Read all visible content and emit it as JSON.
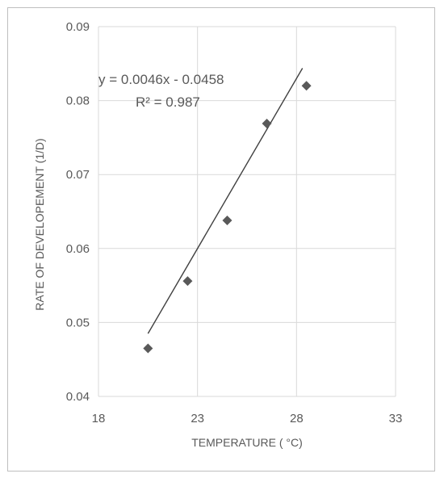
{
  "chart_data": {
    "type": "scatter",
    "xlabel": "TEMPERATURE ( °C)",
    "ylabel": "RATE OF DEVELOPEMENT (1/D)",
    "xlim": [
      18,
      33
    ],
    "ylim": [
      0.04,
      0.09
    ],
    "x_ticks": [
      "18",
      "23",
      "28",
      "33"
    ],
    "y_ticks": [
      "0.04",
      "0.05",
      "0.06",
      "0.07",
      "0.08",
      "0.09"
    ],
    "grid": true,
    "legend": "none",
    "series": [
      {
        "points": [
          {
            "x": 20.5,
            "y": 0.0465
          },
          {
            "x": 22.5,
            "y": 0.0556
          },
          {
            "x": 24.5,
            "y": 0.0638
          },
          {
            "x": 26.5,
            "y": 0.0769
          },
          {
            "x": 28.5,
            "y": 0.082
          }
        ],
        "marker": "diamond",
        "color": "#595959"
      }
    ],
    "trendline": {
      "type": "linear",
      "slope": 0.0046,
      "intercept": -0.0458,
      "x_range": [
        20.5,
        28.3
      ],
      "equation": "y = 0.0046x - 0.0458",
      "r_squared": "R² = 0.987",
      "color": "#404040"
    }
  }
}
